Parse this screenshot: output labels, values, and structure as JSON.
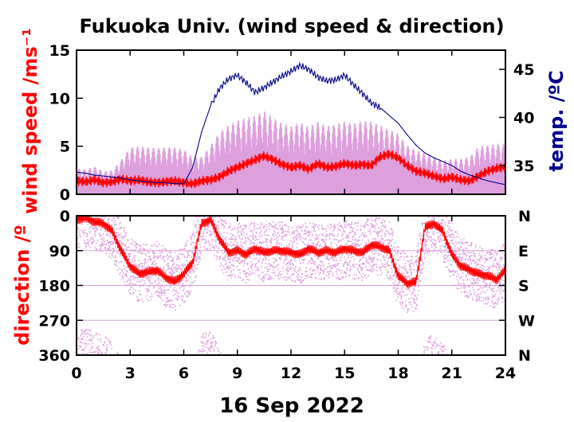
{
  "chart_data": [
    {
      "type": "line",
      "title": "Fukuoka Univ. (wind speed & direction)",
      "xlabel": "16 Sep 2022",
      "ylabel": "wind speed /ms⁻¹",
      "ylabel_right": "temp. /ºC",
      "x_ticks": [
        0,
        3,
        6,
        9,
        12,
        15,
        18,
        21,
        24
      ],
      "xlim": [
        0,
        24
      ],
      "ylim": [
        0,
        15
      ],
      "y_ticks": [
        0,
        5,
        10,
        15
      ],
      "y2lim": [
        32,
        47
      ],
      "y2_ticks": [
        35,
        40,
        45
      ],
      "colors": {
        "wind_mean": "#ff0000",
        "wind_gust": "#dda0dd",
        "temperature": "#00008b"
      },
      "series": [
        {
          "key": "wind_mean",
          "axis": "left",
          "x": [
            0,
            0.5,
            1,
            1.5,
            2,
            2.5,
            3,
            3.5,
            4,
            4.5,
            5,
            5.5,
            6,
            6.5,
            7,
            7.5,
            8,
            8.5,
            9,
            9.5,
            10,
            10.5,
            11,
            11.5,
            12,
            12.5,
            13,
            13.5,
            14,
            14.5,
            15,
            15.5,
            16,
            16.5,
            17,
            17.5,
            18,
            18.5,
            19,
            19.5,
            20,
            20.5,
            21,
            21.5,
            22,
            22.5,
            23,
            23.5,
            24
          ],
          "values": [
            1.4,
            1.3,
            1.5,
            1.2,
            1.3,
            1.6,
            1.4,
            1.5,
            1.3,
            1.2,
            1.3,
            1.4,
            1.2,
            1.1,
            1.4,
            1.5,
            1.8,
            2.4,
            2.8,
            3.2,
            3.6,
            4.0,
            3.6,
            3.1,
            2.8,
            3.0,
            2.6,
            3.2,
            2.8,
            2.9,
            3.2,
            3.0,
            3.1,
            3.0,
            3.9,
            4.2,
            3.8,
            3.0,
            2.4,
            2.2,
            1.9,
            1.6,
            1.8,
            1.5,
            1.4,
            1.9,
            2.4,
            2.7,
            2.8
          ]
        },
        {
          "key": "wind_gust",
          "axis": "left",
          "x": [
            0,
            0.5,
            1,
            1.5,
            2,
            2.5,
            3,
            3.5,
            4,
            4.5,
            5,
            5.5,
            6,
            6.5,
            7,
            7.5,
            8,
            8.5,
            9,
            9.5,
            10,
            10.5,
            11,
            11.5,
            12,
            12.5,
            13,
            13.5,
            14,
            14.5,
            15,
            15.5,
            16,
            16.5,
            17,
            17.5,
            18,
            18.5,
            19,
            19.5,
            20,
            20.5,
            21,
            21.5,
            22,
            22.5,
            23,
            23.5,
            24
          ],
          "values": [
            2.4,
            2.3,
            2.6,
            2.1,
            2.2,
            3.3,
            4.6,
            4.7,
            4.6,
            4.5,
            4.6,
            4.6,
            4.4,
            3.6,
            3.6,
            4.8,
            6.2,
            6.9,
            7.4,
            7.7,
            7.9,
            8.4,
            7.7,
            7.1,
            6.8,
            7.2,
            6.7,
            7.3,
            6.8,
            7.0,
            7.3,
            7.1,
            7.4,
            7.3,
            6.9,
            6.5,
            6.0,
            4.8,
            4.3,
            4.0,
            3.6,
            3.2,
            3.4,
            3.4,
            3.6,
            4.7,
            4.8,
            5.0,
            4.9
          ]
        },
        {
          "key": "temperature",
          "axis": "right",
          "x": [
            0,
            0.5,
            1,
            1.5,
            2,
            2.5,
            3,
            3.5,
            4,
            4.5,
            5,
            5.5,
            6,
            6.5,
            7,
            7.5,
            8,
            8.5,
            9,
            9.5,
            10,
            10.5,
            11,
            11.5,
            12,
            12.5,
            13,
            13.5,
            14,
            14.5,
            15,
            15.5,
            16,
            16.5,
            17,
            17.5,
            18,
            18.5,
            19,
            19.5,
            20,
            20.5,
            21,
            21.5,
            22,
            22.5,
            23,
            23.5,
            24
          ],
          "values": [
            34.3,
            34.2,
            34.0,
            33.9,
            33.8,
            33.7,
            33.5,
            33.4,
            33.3,
            33.2,
            33.2,
            33.1,
            33.1,
            34.8,
            38.5,
            41.2,
            43.0,
            44.0,
            44.4,
            43.6,
            42.6,
            43.1,
            43.7,
            44.3,
            44.8,
            45.4,
            45.0,
            44.2,
            43.8,
            43.9,
            44.4,
            43.4,
            42.5,
            41.5,
            41.0,
            40.2,
            39.4,
            38.2,
            37.1,
            36.3,
            35.8,
            35.4,
            35.0,
            34.4,
            34.0,
            33.7,
            33.4,
            33.2,
            33.0
          ]
        }
      ]
    },
    {
      "type": "scatter",
      "ylabel": "direction /º",
      "xlim": [
        0,
        24
      ],
      "ylim": [
        360,
        0
      ],
      "y_ticks": [
        0,
        90,
        180,
        270,
        360
      ],
      "y_labels_right": [
        "N",
        "E",
        "S",
        "W",
        "N"
      ],
      "grid": true,
      "colors": {
        "dir_mean": "#ff0000",
        "dir_instant": "#dda0dd"
      },
      "series": [
        {
          "key": "dir_mean",
          "x": [
            0,
            0.5,
            1,
            1.5,
            2,
            2.5,
            3,
            3.5,
            4,
            4.5,
            5,
            5.5,
            6,
            6.5,
            7,
            7.5,
            8,
            8.5,
            9,
            9.5,
            10,
            10.5,
            11,
            11.5,
            12,
            12.5,
            13,
            13.5,
            14,
            14.5,
            15,
            15.5,
            16,
            16.5,
            17,
            17.5,
            18,
            18.5,
            19,
            19.5,
            20,
            20.5,
            21,
            21.5,
            22,
            22.5,
            23,
            23.5,
            24
          ],
          "values": [
            10,
            5,
            15,
            20,
            40,
            90,
            130,
            150,
            145,
            140,
            160,
            170,
            150,
            120,
            20,
            10,
            60,
            95,
            90,
            100,
            85,
            95,
            90,
            90,
            95,
            100,
            85,
            95,
            90,
            95,
            85,
            90,
            95,
            75,
            80,
            90,
            155,
            175,
            170,
            30,
            20,
            40,
            100,
            130,
            140,
            150,
            155,
            165,
            140
          ]
        }
      ]
    }
  ]
}
